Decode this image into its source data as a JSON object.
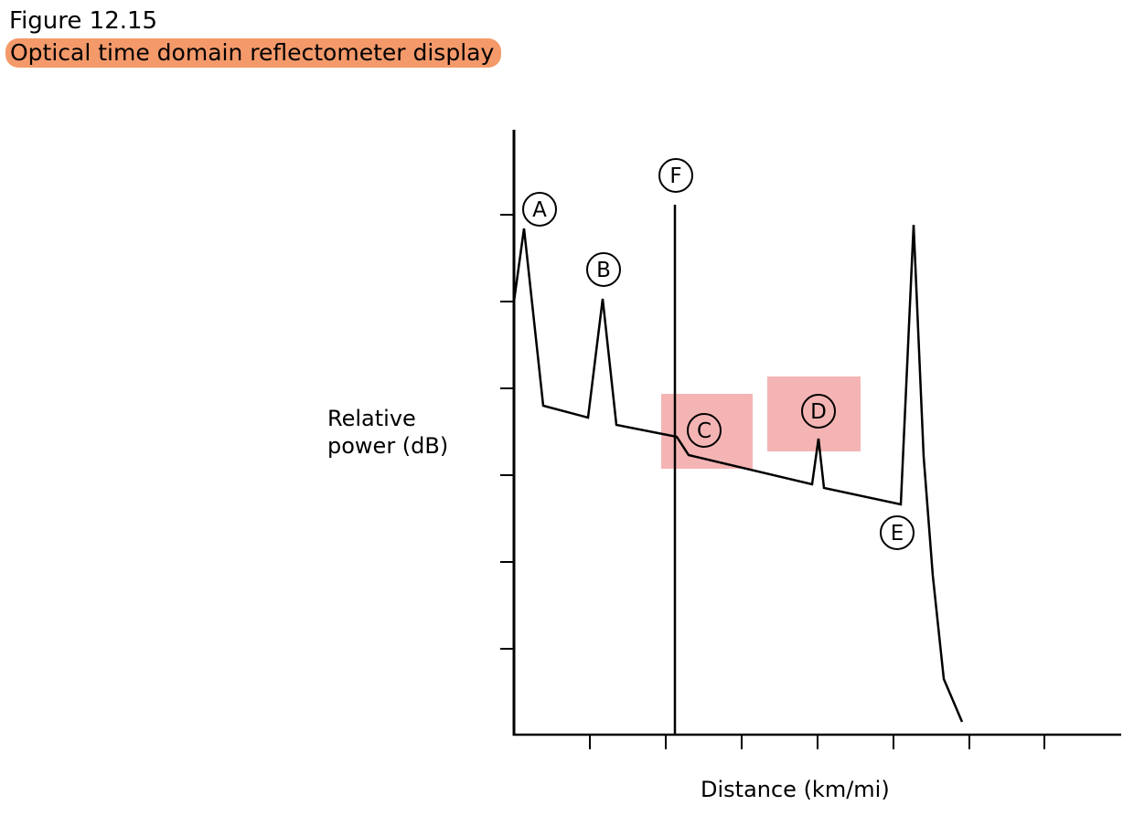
{
  "figure": {
    "number": "Figure 12.15",
    "title": "Optical time domain reflectometer display"
  },
  "axes": {
    "ylabel_line1": "Relative",
    "ylabel_line2": "power (dB)",
    "xlabel": "Distance (km/mi)"
  },
  "markers": {
    "A": "A",
    "B": "B",
    "C": "C",
    "D": "D",
    "E": "E",
    "F": "F"
  },
  "highlight_color": "#f5b4b4",
  "title_highlight_color": "#f4996a"
}
